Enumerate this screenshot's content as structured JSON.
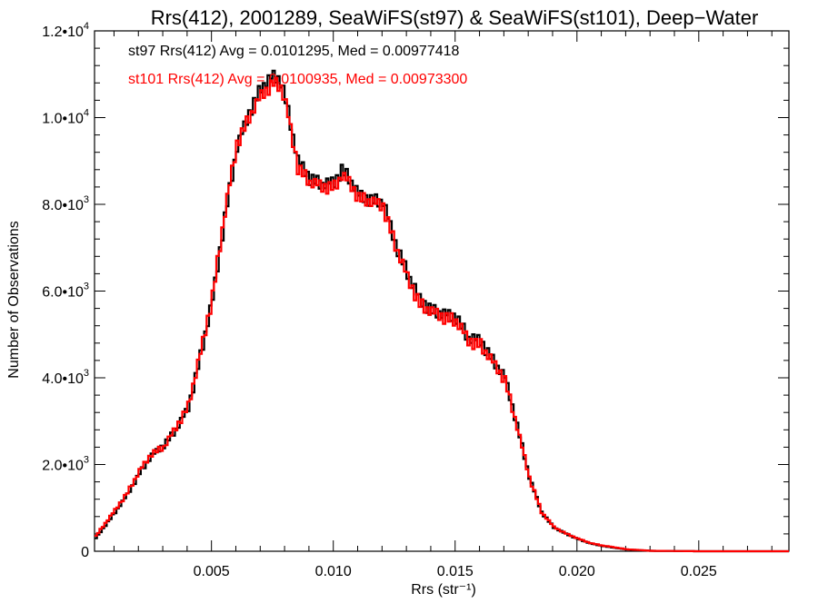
{
  "chart_data": {
    "type": "line",
    "title": "Rrs(412), 2001289, SeaWiFS(st97) & SeaWiFS(st101), Deep−Water",
    "xlabel": "Rrs (str⁻¹)",
    "ylabel": "Number of Observations",
    "xlim": [
      0.0002,
      0.0287
    ],
    "ylim": [
      0,
      12000
    ],
    "x_ticks": [
      0.005,
      0.01,
      0.015,
      0.02,
      0.025
    ],
    "x_tick_labels": [
      "0.005",
      "0.010",
      "0.015",
      "0.020",
      "0.025"
    ],
    "y_ticks": [
      0,
      2000,
      4000,
      6000,
      8000,
      10000,
      12000
    ],
    "y_tick_labels": [
      {
        "mantissa": "0",
        "exponent": ""
      },
      {
        "mantissa": "2.0•10",
        "exponent": "3"
      },
      {
        "mantissa": "4.0•10",
        "exponent": "3"
      },
      {
        "mantissa": "6.0•10",
        "exponent": "3"
      },
      {
        "mantissa": "8.0•10",
        "exponent": "3"
      },
      {
        "mantissa": "1.0•10",
        "exponent": "4"
      },
      {
        "mantissa": "1.2•10",
        "exponent": "4"
      }
    ],
    "series": [
      {
        "name": "st97",
        "color": "#000000",
        "annotation": "st97 Rrs(412) Avg = 0.0101295, Med = 0.00977418",
        "points": [
          [
            0.0002,
            300
          ],
          [
            0.001,
            900
          ],
          [
            0.0015,
            1300
          ],
          [
            0.002,
            1800
          ],
          [
            0.0025,
            2200
          ],
          [
            0.003,
            2450
          ],
          [
            0.0035,
            2800
          ],
          [
            0.004,
            3300
          ],
          [
            0.0045,
            4500
          ],
          [
            0.005,
            5800
          ],
          [
            0.0055,
            7700
          ],
          [
            0.006,
            9300
          ],
          [
            0.0065,
            10100
          ],
          [
            0.007,
            10700
          ],
          [
            0.0075,
            10950
          ],
          [
            0.0078,
            10850
          ],
          [
            0.008,
            10400
          ],
          [
            0.0085,
            9000
          ],
          [
            0.009,
            8600
          ],
          [
            0.0095,
            8450
          ],
          [
            0.01,
            8500
          ],
          [
            0.0103,
            8800
          ],
          [
            0.0106,
            8600
          ],
          [
            0.011,
            8200
          ],
          [
            0.0115,
            8100
          ],
          [
            0.012,
            8050
          ],
          [
            0.0125,
            7100
          ],
          [
            0.013,
            6400
          ],
          [
            0.0135,
            5800
          ],
          [
            0.014,
            5550
          ],
          [
            0.0145,
            5450
          ],
          [
            0.015,
            5400
          ],
          [
            0.0155,
            4900
          ],
          [
            0.016,
            4850
          ],
          [
            0.0165,
            4400
          ],
          [
            0.017,
            4000
          ],
          [
            0.0175,
            2900
          ],
          [
            0.018,
            1700
          ],
          [
            0.0185,
            900
          ],
          [
            0.019,
            550
          ],
          [
            0.0195,
            400
          ],
          [
            0.02,
            280
          ],
          [
            0.0205,
            180
          ],
          [
            0.021,
            120
          ],
          [
            0.0215,
            80
          ],
          [
            0.022,
            40
          ],
          [
            0.023,
            10
          ],
          [
            0.025,
            0
          ],
          [
            0.0287,
            0
          ]
        ]
      },
      {
        "name": "st101",
        "color": "#ff0000",
        "annotation": "st101 Rrs(412) Avg = 0.0100935, Med = 0.00973300",
        "points": [
          [
            0.0002,
            350
          ],
          [
            0.001,
            950
          ],
          [
            0.0015,
            1350
          ],
          [
            0.002,
            1850
          ],
          [
            0.0025,
            2250
          ],
          [
            0.003,
            2400
          ],
          [
            0.0035,
            2850
          ],
          [
            0.004,
            3350
          ],
          [
            0.0045,
            4550
          ],
          [
            0.005,
            5900
          ],
          [
            0.0055,
            7800
          ],
          [
            0.006,
            9400
          ],
          [
            0.0065,
            10000
          ],
          [
            0.007,
            10500
          ],
          [
            0.0075,
            10800
          ],
          [
            0.0078,
            10700
          ],
          [
            0.008,
            10300
          ],
          [
            0.0085,
            8850
          ],
          [
            0.009,
            8500
          ],
          [
            0.0095,
            8400
          ],
          [
            0.01,
            8400
          ],
          [
            0.0103,
            8650
          ],
          [
            0.0106,
            8500
          ],
          [
            0.011,
            8150
          ],
          [
            0.0115,
            8050
          ],
          [
            0.012,
            7950
          ],
          [
            0.0125,
            7050
          ],
          [
            0.013,
            6300
          ],
          [
            0.0135,
            5700
          ],
          [
            0.014,
            5500
          ],
          [
            0.0145,
            5400
          ],
          [
            0.015,
            5300
          ],
          [
            0.0155,
            4850
          ],
          [
            0.016,
            4750
          ],
          [
            0.0165,
            4350
          ],
          [
            0.017,
            3950
          ],
          [
            0.0175,
            2850
          ],
          [
            0.018,
            1700
          ],
          [
            0.0185,
            900
          ],
          [
            0.019,
            560
          ],
          [
            0.0195,
            410
          ],
          [
            0.02,
            290
          ],
          [
            0.0205,
            190
          ],
          [
            0.021,
            130
          ],
          [
            0.0215,
            90
          ],
          [
            0.022,
            45
          ],
          [
            0.023,
            10
          ],
          [
            0.025,
            0
          ],
          [
            0.0287,
            0
          ]
        ]
      }
    ]
  }
}
